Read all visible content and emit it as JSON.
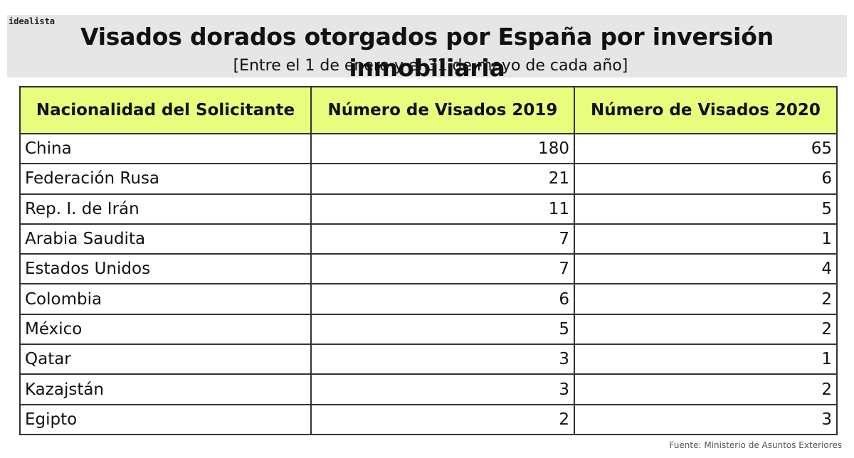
{
  "brand": "idealista",
  "title": "Visados dorados otorgados por España por inversión inmobiliaria",
  "subtitle": "[Entre el 1 de enero y el 31  de mayo de cada año]",
  "source": "Fuente: Ministerio de Asuntos Exteriores",
  "colors": {
    "header_background": "#e8ff7e",
    "title_band": "#e6e6e6"
  },
  "chart_data": {
    "type": "table",
    "columns": [
      "Nacionalidad del Solicitante",
      "Número de Visados  2019",
      "Número de Visados  2020"
    ],
    "rows": [
      [
        "China",
        180,
        65
      ],
      [
        "Federación Rusa",
        21,
        6
      ],
      [
        "Rep. I. de Irán",
        11,
        5
      ],
      [
        "Arabia Saudita",
        7,
        1
      ],
      [
        "Estados Unidos",
        7,
        4
      ],
      [
        "Colombia",
        6,
        2
      ],
      [
        "México",
        5,
        2
      ],
      [
        "Qatar",
        3,
        1
      ],
      [
        "Kazajstán",
        3,
        2
      ],
      [
        "Egipto",
        2,
        3
      ]
    ]
  }
}
